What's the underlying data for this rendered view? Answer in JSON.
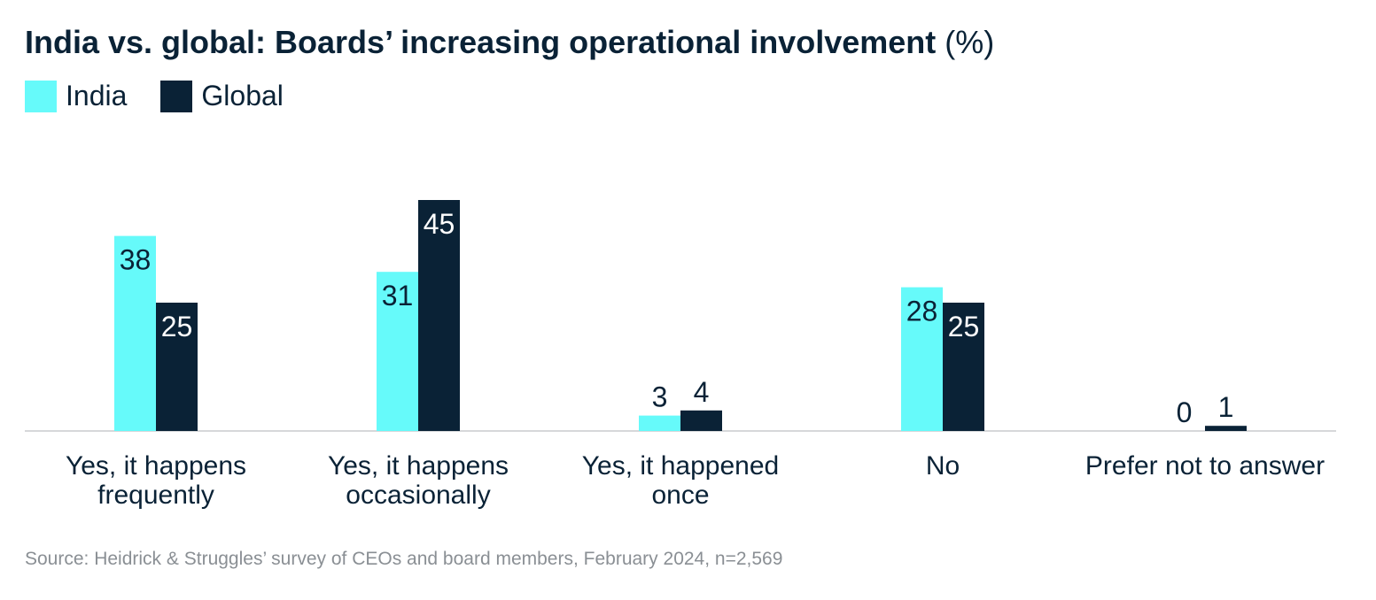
{
  "chart_data": {
    "type": "bar",
    "title": "India vs. global: Boards’ increasing operational involvement",
    "title_unit": "(%)",
    "categories": [
      [
        "Yes, it happens",
        "frequently"
      ],
      [
        "Yes, it happens",
        "occasionally"
      ],
      [
        "Yes, it happened",
        "once"
      ],
      [
        "No"
      ],
      [
        "Prefer not to answer"
      ]
    ],
    "series": [
      {
        "name": "India",
        "color": "#66fafa",
        "values": [
          38,
          31,
          3,
          28,
          0
        ]
      },
      {
        "name": "Global",
        "color": "#0a2236",
        "values": [
          25,
          45,
          4,
          25,
          1
        ]
      }
    ],
    "ylim": [
      0,
      50
    ],
    "legend_position": "top-left",
    "grid": false
  },
  "source": "Source: Heidrick & Struggles’ survey of CEOs and board members, February 2024, n=2,569"
}
